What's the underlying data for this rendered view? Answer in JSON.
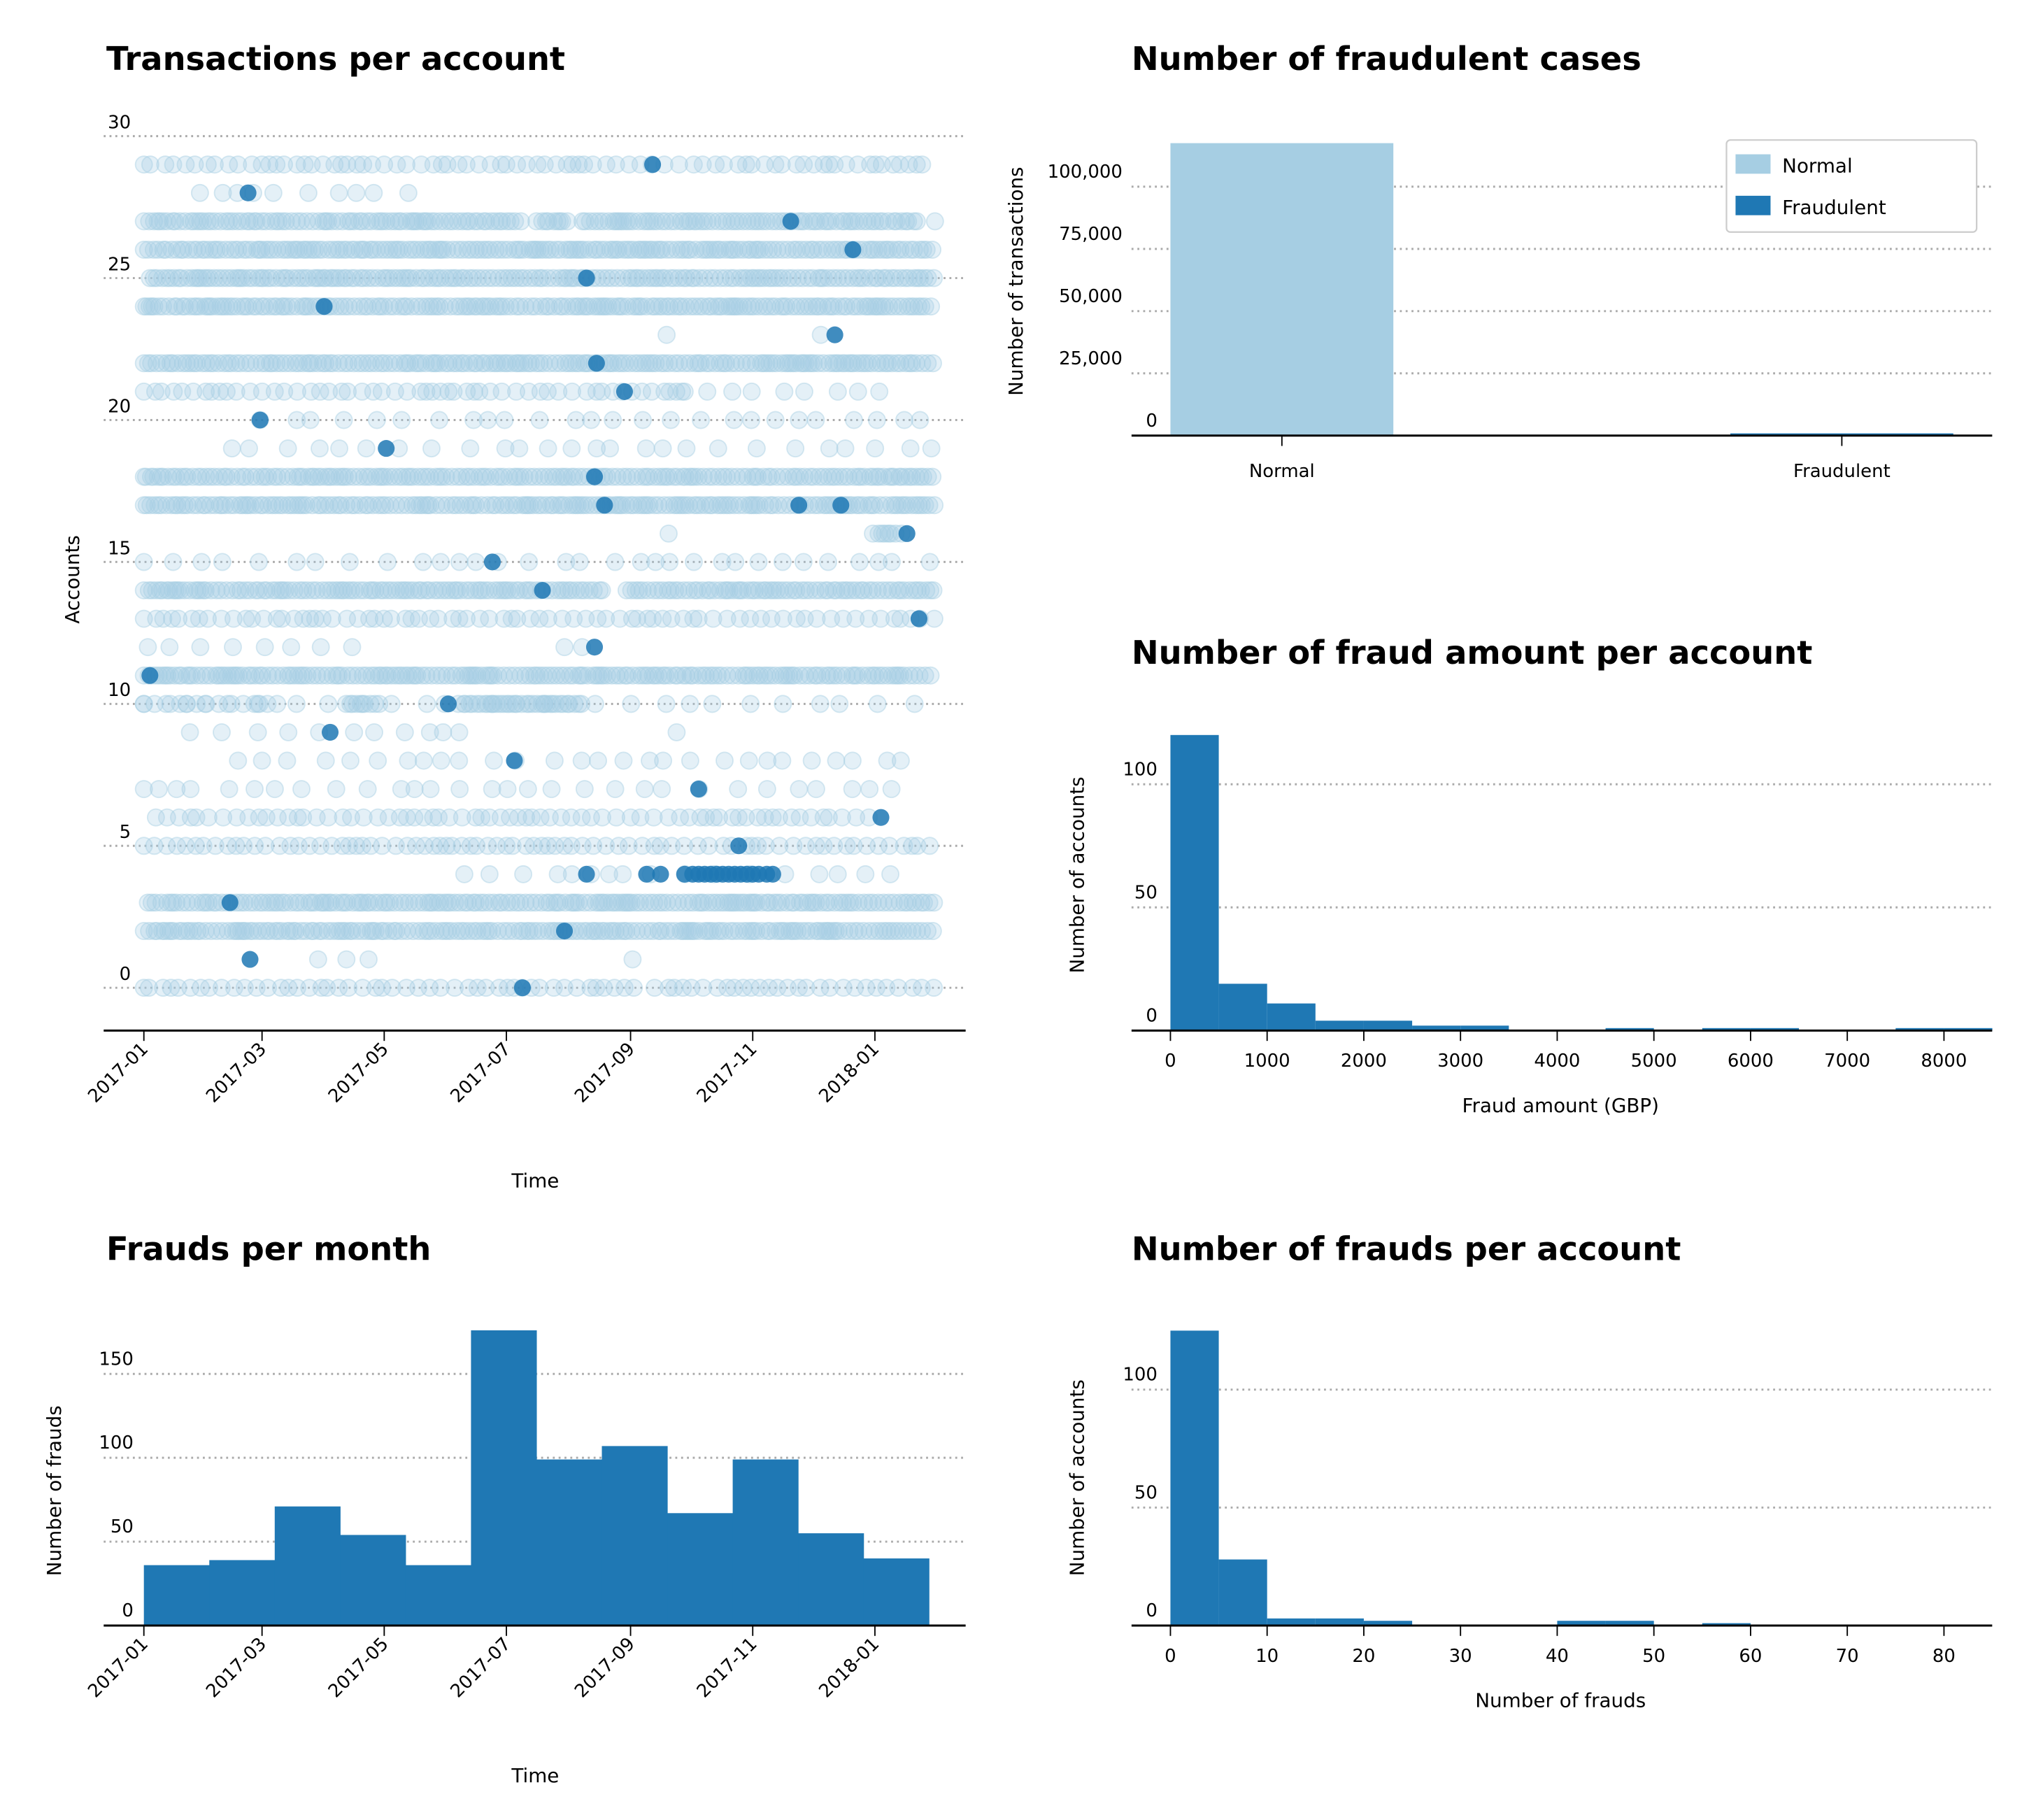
{
  "colors": {
    "normal": "#a6cee3",
    "fraud": "#1f78b4",
    "grid": "#aaaaaa"
  },
  "chart_data": [
    {
      "id": "transactions",
      "type": "scatter",
      "title": "Transactions per account",
      "xlabel": "Time",
      "ylabel": "Accounts",
      "x_ticks": [
        "2017-01",
        "2017-03",
        "2017-05",
        "2017-07",
        "2017-09",
        "2017-11",
        "2018-01"
      ],
      "y_ticks": [
        0,
        5,
        10,
        15,
        20,
        25,
        30
      ],
      "ylim": [
        -1.5,
        30
      ],
      "grid": "y dotted",
      "accounts": [
        {
          "id": 0,
          "normal": [
            {
              "from": "2017-01-01",
              "to": "2017-09-06",
              "activity": "medium"
            },
            {
              "from": "2017-09-13",
              "to": "2018-01-31",
              "activity": "medium"
            }
          ],
          "fraud": [
            "2017-07-09"
          ]
        },
        {
          "id": 1,
          "normal": [
            {
              "from": "2017-03-29",
              "to": "2017-04-26",
              "activity": "sparse"
            },
            {
              "from": "2017-09-02",
              "to": "2017-09-13",
              "activity": "sparse"
            }
          ],
          "fraud": [
            "2017-02-23"
          ]
        },
        {
          "id": 2,
          "normal": [
            {
              "from": "2017-01-01",
              "to": "2018-01-31",
              "activity": "dense"
            }
          ],
          "fraud": [
            "2017-07-30"
          ]
        },
        {
          "id": 3,
          "normal": [
            {
              "from": "2017-01-03",
              "to": "2018-01-31",
              "activity": "dense"
            }
          ],
          "fraud": [
            "2017-02-13"
          ]
        },
        {
          "id": 4,
          "normal": [
            {
              "from": "2017-06-10",
              "to": "2018-01-20",
              "activity": "sparse"
            }
          ],
          "fraud": [
            "2017-08-10",
            "2017-09-09",
            "2017-09-16",
            "2017-09-28",
            "2017-10-02",
            "2017-10-05",
            "2017-10-08",
            "2017-10-11",
            "2017-10-14",
            "2017-10-17",
            "2017-10-20",
            "2017-10-23",
            "2017-10-26",
            "2017-10-29",
            "2017-11-01",
            "2017-11-04",
            "2017-11-08",
            "2017-11-11"
          ]
        },
        {
          "id": 5,
          "normal": [
            {
              "from": "2017-01-01",
              "to": "2018-01-31",
              "activity": "medium"
            }
          ],
          "fraud": [
            "2017-10-25"
          ]
        },
        {
          "id": 6,
          "normal": [
            {
              "from": "2017-01-07",
              "to": "2018-01-04",
              "activity": "medium"
            }
          ],
          "fraud": [
            "2018-01-04"
          ]
        },
        {
          "id": 7,
          "normal": [
            {
              "from": "2017-01-01",
              "to": "2018-01-19",
              "activity": "sparse"
            }
          ],
          "fraud": [
            "2017-10-05"
          ]
        },
        {
          "id": 8,
          "normal": [
            {
              "from": "2017-02-17",
              "to": "2018-01-27",
              "activity": "sparse"
            }
          ],
          "fraud": [
            "2017-07-05"
          ]
        },
        {
          "id": 9,
          "normal": [
            {
              "from": "2017-01-24",
              "to": "2017-06-15",
              "activity": "sparse"
            },
            {
              "from": "2017-09-24",
              "to": "2017-09-30",
              "activity": "sparse"
            }
          ],
          "fraud": [
            "2017-04-04"
          ]
        },
        {
          "id": 10,
          "normal": [
            {
              "from": "2017-01-01",
              "to": "2018-01-31",
              "activity": "sparse"
            },
            {
              "from": "2017-01-01",
              "to": "2017-03-10",
              "activity": "medium"
            },
            {
              "from": "2017-04-12",
              "to": "2017-04-29",
              "activity": "dense"
            },
            {
              "from": "2017-06-07",
              "to": "2017-08-08",
              "activity": "dense"
            }
          ],
          "fraud": [
            "2017-06-02"
          ]
        },
        {
          "id": 11,
          "normal": [
            {
              "from": "2017-01-01",
              "to": "2018-01-29",
              "activity": "dense"
            }
          ],
          "fraud": [
            "2017-01-04"
          ]
        },
        {
          "id": 12,
          "normal": [
            {
              "from": "2017-01-03",
              "to": "2017-04-26",
              "activity": "sparse"
            },
            {
              "from": "2017-07-30",
              "to": "2017-08-14",
              "activity": "sparse"
            }
          ],
          "fraud": [
            "2017-08-14"
          ]
        },
        {
          "id": 13,
          "normal": [
            {
              "from": "2017-01-01",
              "to": "2018-01-31",
              "activity": "medium"
            }
          ],
          "fraud": [
            "2018-01-23"
          ]
        },
        {
          "id": 14,
          "normal": [
            {
              "from": "2017-01-01",
              "to": "2017-08-20",
              "activity": "dense"
            },
            {
              "from": "2017-08-30",
              "to": "2018-01-31",
              "activity": "dense"
            }
          ],
          "fraud": [
            "2017-07-19"
          ]
        },
        {
          "id": 15,
          "normal": [
            {
              "from": "2017-01-01",
              "to": "2018-01-31",
              "activity": "sparse"
            }
          ],
          "fraud": [
            "2017-06-24"
          ]
        },
        {
          "id": 16,
          "normal": [
            {
              "from": "2017-09-20",
              "to": "2017-09-22",
              "activity": "sparse"
            },
            {
              "from": "2017-12-31",
              "to": "2018-01-17",
              "activity": "dense"
            }
          ],
          "fraud": [
            "2018-01-17"
          ]
        },
        {
          "id": 17,
          "normal": [
            {
              "from": "2017-01-01",
              "to": "2018-01-31",
              "activity": "dense"
            }
          ],
          "fraud": [
            "2017-08-19",
            "2017-11-24",
            "2017-12-15"
          ]
        },
        {
          "id": 18,
          "normal": [
            {
              "from": "2017-01-01",
              "to": "2018-01-31",
              "activity": "dense"
            }
          ],
          "fraud": [
            "2017-08-14"
          ]
        },
        {
          "id": 19,
          "normal": [
            {
              "from": "2017-02-14",
              "to": "2018-01-31",
              "activity": "sparse"
            }
          ],
          "fraud": [
            "2017-05-02"
          ]
        },
        {
          "id": 20,
          "normal": [
            {
              "from": "2017-02-28",
              "to": "2018-01-31",
              "activity": "sparse"
            }
          ],
          "fraud": [
            "2017-02-28"
          ]
        },
        {
          "id": 21,
          "normal": [
            {
              "from": "2017-01-01",
              "to": "2017-09-28",
              "activity": "medium"
            },
            {
              "from": "2017-09-28",
              "to": "2018-01-05",
              "activity": "sparse"
            }
          ],
          "fraud": [
            "2017-08-29"
          ]
        },
        {
          "id": 22,
          "normal": [
            {
              "from": "2017-01-01",
              "to": "2018-01-31",
              "activity": "dense"
            }
          ],
          "fraud": [
            "2017-08-15"
          ]
        },
        {
          "id": 23,
          "normal": [
            {
              "from": "2017-09-19",
              "to": "2017-09-22",
              "activity": "sparse"
            },
            {
              "from": "2017-12-05",
              "to": "2017-12-08",
              "activity": "sparse"
            }
          ],
          "fraud": [
            "2017-12-12"
          ]
        },
        {
          "id": 24,
          "normal": [
            {
              "from": "2017-01-01",
              "to": "2018-01-30",
              "activity": "dense"
            }
          ],
          "fraud": [
            "2017-04-01"
          ]
        },
        {
          "id": 25,
          "normal": [
            {
              "from": "2017-01-04",
              "to": "2018-01-31",
              "activity": "dense"
            }
          ],
          "fraud": [
            "2017-08-10"
          ]
        },
        {
          "id": 26,
          "normal": [
            {
              "from": "2017-01-01",
              "to": "2018-01-31",
              "activity": "dense"
            }
          ],
          "fraud": [
            "2017-12-21"
          ]
        },
        {
          "id": 27,
          "normal": [
            {
              "from": "2017-01-01",
              "to": "2017-07-09",
              "activity": "dense"
            },
            {
              "from": "2017-07-16",
              "to": "2017-08-01",
              "activity": "dense"
            },
            {
              "from": "2017-08-08",
              "to": "2018-01-24",
              "activity": "dense"
            },
            {
              "from": "2018-01-31",
              "to": "2018-01-31",
              "activity": "sparse"
            }
          ],
          "fraud": [
            "2017-11-20"
          ]
        },
        {
          "id": 28,
          "normal": [
            {
              "from": "2017-01-29",
              "to": "2017-05-14",
              "activity": "sparse"
            }
          ],
          "fraud": [
            "2017-02-22"
          ]
        },
        {
          "id": 29,
          "normal": [
            {
              "from": "2017-01-01",
              "to": "2018-01-31",
              "activity": "medium"
            }
          ],
          "fraud": [
            "2017-09-12"
          ]
        }
      ]
    },
    {
      "id": "fraud_cases",
      "type": "bar",
      "title": "Number of fraudulent cases",
      "xlabel": "",
      "ylabel": "Number of transactions",
      "categories": [
        "Normal",
        "Fraudulent"
      ],
      "values": [
        117500,
        879
      ],
      "y_ticks": [
        "0",
        "25,000",
        "50,000",
        "75,000",
        "100,000"
      ],
      "y_tick_values": [
        0,
        25000,
        50000,
        75000,
        100000
      ],
      "ylim": [
        0,
        122000
      ],
      "legend": {
        "placement": "top-right",
        "entries": [
          "Normal",
          "Fraudulent"
        ]
      },
      "grid": "y dotted"
    },
    {
      "id": "fraud_amount",
      "type": "bar",
      "title": "Number of fraud amount per account",
      "xlabel": "Fraud amount (GBP)",
      "ylabel": "Number of accounts",
      "bin_width": 500,
      "bin_start": 0,
      "values": [
        120,
        19,
        11,
        4,
        4,
        2,
        2,
        0,
        0,
        1,
        0,
        1,
        1,
        0,
        0,
        1,
        1
      ],
      "x_ticks": [
        0,
        1000,
        2000,
        3000,
        4000,
        5000,
        6000,
        7000,
        8000
      ],
      "y_ticks": [
        0,
        50,
        100
      ],
      "xlim": [
        -400,
        8500
      ],
      "ylim": [
        0,
        125
      ],
      "grid": "y dotted"
    },
    {
      "id": "frauds_per_month",
      "type": "bar",
      "title": "Frauds per month",
      "xlabel": "Time",
      "ylabel": "Number of frauds",
      "bin_start": "2017-01-01",
      "bin_end": "2018-01-28",
      "values": [
        36,
        39,
        71,
        54,
        36,
        176,
        99,
        107,
        67,
        99,
        55,
        40
      ],
      "x_ticks": [
        "2017-01",
        "2017-03",
        "2017-05",
        "2017-07",
        "2017-09",
        "2017-11",
        "2018-01"
      ],
      "y_ticks": [
        0,
        50,
        100,
        150
      ],
      "ylim": [
        0,
        180
      ],
      "grid": "y dotted"
    },
    {
      "id": "frauds_per_account",
      "type": "bar",
      "title": "Number of frauds per account",
      "xlabel": "Number of frauds",
      "ylabel": "Number of accounts",
      "bin_width": 5,
      "bin_start": 0,
      "values": [
        125,
        28,
        3,
        3,
        2,
        0,
        0,
        0,
        2,
        2,
        0,
        1,
        0,
        0,
        0,
        0,
        0
      ],
      "x_ticks": [
        0,
        10,
        20,
        30,
        40,
        50,
        60,
        70,
        80
      ],
      "y_ticks": [
        0,
        50,
        100
      ],
      "xlim": [
        -4,
        85
      ],
      "ylim": [
        0,
        130
      ],
      "grid": "y dotted"
    }
  ]
}
